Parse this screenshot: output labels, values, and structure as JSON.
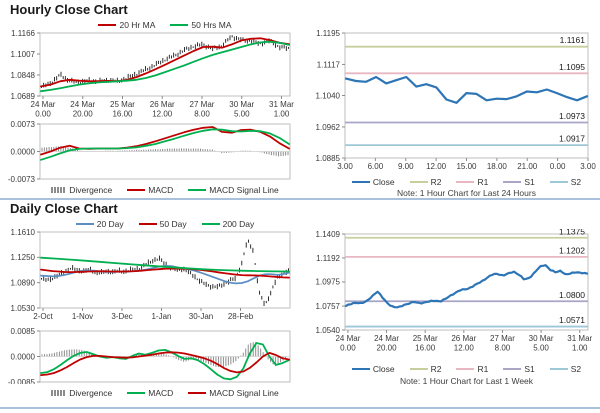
{
  "sections": {
    "hourly": {
      "title": "Hourly Close Chart"
    },
    "daily": {
      "title": "Daily Close Chart"
    },
    "h24": {
      "note": "Note: 1 Hour Chart for Last 24 Hours"
    },
    "week": {
      "note": "Note: 1 Hour Chart for Last 1 Week"
    }
  },
  "colors": {
    "close_blue": "#2e75b6",
    "ma_red": "#c00000",
    "ma_green": "#00b050",
    "ma20_blue": "#5b8ec5",
    "candle_black": "#1a1a1a",
    "divergence_gray": "#8c8c8c",
    "r2_olive": "#c6cf9e",
    "r1_pink": "#e8b7c2",
    "s1_lavender": "#a9a5c6",
    "s2_lightblue": "#9dc8d8",
    "axis_border": "#bfbfbf",
    "divider_blue": "#aac1dd"
  },
  "chart_data": [
    {
      "id": "hourly-price",
      "type": "candlestick",
      "title": "Hourly Close Chart",
      "ylim": [
        1.0689,
        1.1166
      ],
      "yticks": [
        "1.1166",
        "1.1007",
        "1.0848",
        "1.0689"
      ],
      "xticks": [
        "24 Mar\n0.00",
        "24 Mar\n20.00",
        "25 Mar\n16.00",
        "26 Mar\n12.00",
        "27 Mar\n8.00",
        "30 Mar\n5.00",
        "31 Mar\n1.00"
      ],
      "xtick_start": 0.012,
      "xtick_step": 0.159,
      "candles": {
        "name": "Close",
        "color": "#1a1a1a",
        "n": 115,
        "jitter": 0.0011,
        "wick": 0.0013,
        "values": [
          1.0755,
          1.079,
          1.085,
          1.08,
          1.0795,
          1.0805,
          1.0798,
          1.0808,
          1.08,
          1.0825,
          1.0858,
          1.089,
          1.0925,
          1.0965,
          1.0995,
          1.1035,
          1.1065,
          1.108,
          1.1045,
          1.107,
          1.114,
          1.1115,
          1.1105,
          1.1085,
          1.111,
          1.106,
          1.105
        ]
      },
      "series": [
        {
          "name": "20 Hr MA",
          "color": "#c00000",
          "width": 1.8,
          "values": [
            1.0762,
            1.0775,
            1.08,
            1.0812,
            1.0805,
            1.08,
            1.0802,
            1.0803,
            1.0802,
            1.081,
            1.0832,
            1.086,
            1.0892,
            1.0925,
            1.096,
            1.0995,
            1.103,
            1.106,
            1.1062,
            1.1055,
            1.108,
            1.111,
            1.1122,
            1.1126,
            1.1112,
            1.1092,
            1.1082
          ]
        },
        {
          "name": "50 Hrs MA",
          "color": "#00b050",
          "width": 1.8,
          "values": [
            1.0725,
            1.0735,
            1.0748,
            1.0762,
            1.0775,
            1.0785,
            1.0792,
            1.0796,
            1.08,
            1.0805,
            1.0812,
            1.0825,
            1.0845,
            1.087,
            1.0895,
            1.092,
            1.0948,
            1.0975,
            1.1,
            1.102,
            1.104,
            1.106,
            1.108,
            1.1095,
            1.11,
            1.1092,
            1.1076
          ]
        }
      ],
      "legend": [
        {
          "label": "20 Hr MA",
          "color": "#c00000",
          "type": "line"
        },
        {
          "label": "50 Hrs MA",
          "color": "#00b050",
          "type": "line"
        }
      ]
    },
    {
      "id": "hourly-macd",
      "type": "line+bar",
      "ylim": [
        -0.0073,
        0.0073
      ],
      "yticks": [
        "0.0073",
        "0.0000",
        "-0.0073"
      ],
      "xticks": [],
      "bars": {
        "name": "Divergence",
        "color": "#8c8c8c",
        "n": 105,
        "values": [
          0.001,
          0.0012,
          0.0014,
          0.001,
          0.0002,
          0.0001,
          0.0001,
          0.0002,
          0.0002,
          0.0003,
          0.0004,
          0.0005,
          0.0006,
          0.0007,
          0.0008,
          0.0008,
          0.0008,
          0.0007,
          0.0005,
          -0.0004,
          -0.0003,
          0.0002,
          0.0002,
          -0.0002,
          -0.0008,
          -0.0013,
          -0.001
        ]
      },
      "series": [
        {
          "name": "MACD",
          "color": "#c00000",
          "width": 1.8,
          "values": [
            -0.0008,
            0.0,
            0.001,
            0.0015,
            0.0008,
            0.0007,
            0.0008,
            0.0008,
            0.0008,
            0.001,
            0.0014,
            0.002,
            0.0027,
            0.0035,
            0.0043,
            0.0051,
            0.0058,
            0.0063,
            0.0065,
            0.0052,
            0.005,
            0.0057,
            0.0058,
            0.0052,
            0.004,
            0.0022,
            0.0008
          ]
        },
        {
          "name": "MACD Signal Line",
          "color": "#00b050",
          "width": 1.8,
          "values": [
            -0.0022,
            -0.0014,
            -0.0005,
            0.0003,
            0.0007,
            0.0008,
            0.0008,
            0.0008,
            0.0008,
            0.0009,
            0.0011,
            0.0015,
            0.002,
            0.0027,
            0.0034,
            0.0042,
            0.0049,
            0.0055,
            0.0059,
            0.0058,
            0.0054,
            0.0053,
            0.0055,
            0.0054,
            0.0048,
            0.0036,
            0.002
          ]
        }
      ],
      "legend": [
        {
          "label": "Divergence",
          "color": "#8c8c8c",
          "type": "bars"
        },
        {
          "label": "MACD",
          "color": "#c00000",
          "type": "line"
        },
        {
          "label": "MACD Signal Line",
          "color": "#00b050",
          "type": "line"
        }
      ]
    },
    {
      "id": "h24",
      "type": "line",
      "note": "Note: 1 Hour Chart for Last 24 Hours",
      "ylim": [
        1.0885,
        1.1195
      ],
      "yticks": [
        "1.1195",
        "1.1117",
        "1.1040",
        "1.0962",
        "1.0885"
      ],
      "xticks": [
        "3.00",
        "6.00",
        "9.00",
        "12.00",
        "15.00",
        "18.00",
        "21.00",
        "0.00",
        "3.00"
      ],
      "xtick_start": 0.0,
      "xtick_step": 0.125,
      "pivots": [
        {
          "name": "R2",
          "label": "1.1161",
          "value": 1.1161,
          "color": "#c6cf9e"
        },
        {
          "name": "R1",
          "label": "1.1095",
          "value": 1.1095,
          "color": "#e8b7c2"
        },
        {
          "name": "S1",
          "label": "1.0973",
          "value": 1.0973,
          "color": "#a9a5c6"
        },
        {
          "name": "S2",
          "label": "1.0917",
          "value": 1.0917,
          "color": "#9dc8d8"
        }
      ],
      "series": [
        {
          "name": "Close",
          "color": "#2e75b6",
          "width": 2.2,
          "values": [
            1.1082,
            1.1076,
            1.1074,
            1.1086,
            1.107,
            1.1078,
            1.1086,
            1.1062,
            1.1068,
            1.106,
            1.103,
            1.1022,
            1.1046,
            1.1044,
            1.1028,
            1.1032,
            1.1031,
            1.1038,
            1.105,
            1.1048,
            1.1055,
            1.1046,
            1.1036,
            1.1028,
            1.1038
          ]
        }
      ],
      "legend": [
        {
          "label": "Close",
          "color": "#2e75b6",
          "type": "line"
        },
        {
          "label": "R2",
          "color": "#c6cf9e",
          "type": "line"
        },
        {
          "label": "R1",
          "color": "#e8b7c2",
          "type": "line"
        },
        {
          "label": "S1",
          "color": "#a9a5c6",
          "type": "line"
        },
        {
          "label": "S2",
          "color": "#9dc8d8",
          "type": "line"
        }
      ]
    },
    {
      "id": "daily-price",
      "type": "candlestick",
      "title": "Daily Close Chart",
      "ylim": [
        1.053,
        1.161
      ],
      "yticks": [
        "1.1610",
        "1.1250",
        "1.0890",
        "1.0530"
      ],
      "xticks": [
        "2-Oct",
        "1-Nov",
        "3-Dec",
        "1-Jan",
        "30-Jan",
        "28-Feb"
      ],
      "xtick_start": 0.012,
      "xtick_step": 0.158,
      "candles": {
        "name": "Close",
        "color": "#1a1a1a",
        "n": 112,
        "jitter": 0.0018,
        "wick": 0.0026,
        "values": [
          1.0945,
          1.0925,
          1.096,
          1.1,
          1.105,
          1.1095,
          1.107,
          1.105,
          1.1075,
          1.1045,
          1.1025,
          1.105,
          1.104,
          1.1055,
          1.105,
          1.1065,
          1.108,
          1.111,
          1.116,
          1.121,
          1.123,
          1.116,
          1.11,
          1.107,
          1.109,
          1.104,
          1.098,
          1.091,
          1.086,
          1.0835,
          1.083,
          1.087,
          1.092,
          1.095,
          1.115,
          1.149,
          1.135,
          1.075,
          1.057,
          1.075,
          1.095,
          1.102,
          1.106
        ]
      },
      "series": [
        {
          "name": "20 Day",
          "color": "#5b8ec5",
          "width": 1.7,
          "values": [
            1.099,
            1.0985,
            1.098,
            1.0985,
            1.1,
            1.102,
            1.1045,
            1.106,
            1.1065,
            1.106,
            1.105,
            1.1045,
            1.1042,
            1.1045,
            1.1048,
            1.105,
            1.1055,
            1.1065,
            1.108,
            1.11,
            1.112,
            1.113,
            1.1125,
            1.111,
            1.1095,
            1.108,
            1.106,
            1.1035,
            1.1005,
            1.0975,
            1.0945,
            1.0915,
            1.089,
            1.088,
            1.0885,
            1.091,
            1.095,
            1.099,
            1.101,
            1.101,
            1.1,
            1.101,
            1.103
          ]
        },
        {
          "name": "50 Day",
          "color": "#c00000",
          "width": 1.8,
          "values": [
            1.1075,
            1.1065,
            1.1055,
            1.1048,
            1.1042,
            1.104,
            1.1042,
            1.1045,
            1.1048,
            1.105,
            1.1052,
            1.105,
            1.1048,
            1.1047,
            1.1048,
            1.105,
            1.1055,
            1.106,
            1.1068,
            1.1075,
            1.1082,
            1.1088,
            1.109,
            1.109,
            1.1088,
            1.1085,
            1.108,
            1.1072,
            1.1062,
            1.105,
            1.1038,
            1.1026,
            1.1015,
            1.1005,
            1.0998,
            1.0995,
            1.0993,
            1.099,
            1.0985,
            1.0978,
            1.097,
            1.0965,
            1.0962
          ]
        },
        {
          "name": "200 Day",
          "color": "#00b050",
          "width": 1.8,
          "values": [
            1.1245,
            1.1232,
            1.1218,
            1.1202,
            1.1186,
            1.117,
            1.1154,
            1.1138,
            1.1122,
            1.1108,
            1.1094,
            1.1082,
            1.1072,
            1.1064,
            1.1058,
            1.1054,
            1.105,
            1.1048
          ]
        }
      ],
      "legend": [
        {
          "label": "20 Day",
          "color": "#5b8ec5",
          "type": "line"
        },
        {
          "label": "50 Day",
          "color": "#c00000",
          "type": "line"
        },
        {
          "label": "200 Day",
          "color": "#00b050",
          "type": "line"
        }
      ]
    },
    {
      "id": "daily-macd",
      "type": "line+bar",
      "ylim": [
        -0.0085,
        0.0085
      ],
      "yticks": [
        "0.0085",
        "0.0000",
        "-0.0085"
      ],
      "xticks": [],
      "bars": {
        "name": "Divergence",
        "color": "#8c8c8c",
        "n": 100,
        "values": [
          0.0007,
          0.0008,
          0.0013,
          0.0018,
          0.0023,
          0.0024,
          0.0022,
          0.0017,
          0.0006,
          -0.0002,
          -0.0004,
          0.0,
          -0.0003,
          -0.0004,
          0.0005,
          0.001,
          0.0003,
          0.0006,
          0.001,
          0.0009,
          0.0,
          -0.0011,
          -0.0018,
          -0.0011,
          -0.0012,
          -0.0019,
          -0.0028,
          -0.0035,
          -0.0035,
          -0.0028,
          -0.0015,
          0.001,
          0.0045,
          0.0048,
          0.002,
          -0.0012,
          -0.0033,
          -0.0016,
          -0.0002
        ]
      },
      "series": [
        {
          "name": "MACD",
          "color": "#00b050",
          "width": 1.8,
          "values": [
            -0.0055,
            -0.0052,
            -0.0042,
            -0.0028,
            -0.0012,
            0.0002,
            0.0012,
            0.0015,
            0.0008,
            0.0,
            -0.0004,
            -0.0002,
            -0.0006,
            -0.0008,
            0.0002,
            0.001,
            0.0006,
            0.0012,
            0.002,
            0.0022,
            0.0014,
            0.0002,
            -0.0008,
            -0.0006,
            -0.0012,
            -0.0025,
            -0.0042,
            -0.006,
            -0.0073,
            -0.0076,
            -0.0068,
            -0.004,
            0.001,
            0.0045,
            0.004,
            0.0,
            -0.0028,
            -0.0022,
            -0.0012
          ]
        },
        {
          "name": "MACD Signal Line",
          "color": "#c00000",
          "width": 1.8,
          "values": [
            -0.0062,
            -0.006,
            -0.0055,
            -0.0046,
            -0.0035,
            -0.0022,
            -0.001,
            -0.0002,
            0.0002,
            0.0002,
            0.0,
            -0.0002,
            -0.0003,
            -0.0004,
            -0.0003,
            0.0,
            0.0003,
            0.0006,
            0.001,
            0.0013,
            0.0014,
            0.0013,
            0.001,
            0.0005,
            0.0,
            -0.0006,
            -0.0014,
            -0.0025,
            -0.0038,
            -0.0048,
            -0.0053,
            -0.005,
            -0.0038,
            -0.002,
            0.0,
            0.0012,
            0.0005,
            -0.0006,
            -0.001
          ]
        }
      ],
      "legend": [
        {
          "label": "Divergence",
          "color": "#8c8c8c",
          "type": "bars"
        },
        {
          "label": "MACD",
          "color": "#00b050",
          "type": "line"
        },
        {
          "label": "MACD Signal Line",
          "color": "#c00000",
          "type": "line"
        }
      ]
    },
    {
      "id": "week",
      "type": "line",
      "note": "Note: 1 Hour Chart for Last 1 Week",
      "ylim": [
        1.054,
        1.1409
      ],
      "yticks": [
        "1.1409",
        "1.1192",
        "1.0975",
        "1.0757",
        "1.0540"
      ],
      "xticks": [
        "24 Mar\n0.00",
        "24 Mar\n20.00",
        "25 Mar\n16.00",
        "26 Mar\n12.00",
        "27 Mar\n8.00",
        "30 Mar\n5.00",
        "31 Mar\n1.00"
      ],
      "xtick_start": 0.012,
      "xtick_step": 0.159,
      "pivots": [
        {
          "name": "R2",
          "label": "1.1375",
          "value": 1.1375,
          "color": "#c6cf9e"
        },
        {
          "name": "R1",
          "label": "1.1202",
          "value": 1.1202,
          "color": "#e8b7c2"
        },
        {
          "name": "S1",
          "label": "1.0800",
          "value": 1.08,
          "color": "#a9a5c6"
        },
        {
          "name": "S2",
          "label": "1.0571",
          "value": 1.0571,
          "color": "#9dc8d8"
        }
      ],
      "series": [
        {
          "name": "Close",
          "color": "#2e75b6",
          "width": 2.2,
          "n": 100,
          "jitter": 0.0006,
          "values": [
            1.0758,
            1.0775,
            1.079,
            1.0782,
            1.08,
            1.0848,
            1.089,
            1.083,
            1.078,
            1.0748,
            1.0742,
            1.0768,
            1.078,
            1.0792,
            1.0785,
            1.0788,
            1.0798,
            1.0808,
            1.0798,
            1.082,
            1.0855,
            1.088,
            1.0902,
            1.0912,
            1.093,
            1.0955,
            1.0985,
            1.1015,
            1.1042,
            1.105,
            1.1032,
            1.105,
            1.107,
            1.1042,
            1.0995,
            1.1012,
            1.106,
            1.111,
            1.1132,
            1.1085,
            1.106,
            1.1078,
            1.104,
            1.1052,
            1.1065,
            1.1058,
            1.1048
          ]
        }
      ],
      "legend": [
        {
          "label": "Close",
          "color": "#2e75b6",
          "type": "line"
        },
        {
          "label": "R2",
          "color": "#c6cf9e",
          "type": "line"
        },
        {
          "label": "R1",
          "color": "#e8b7c2",
          "type": "line"
        },
        {
          "label": "S1",
          "color": "#a9a5c6",
          "type": "line"
        },
        {
          "label": "S2",
          "color": "#9dc8d8",
          "type": "line"
        }
      ]
    }
  ]
}
